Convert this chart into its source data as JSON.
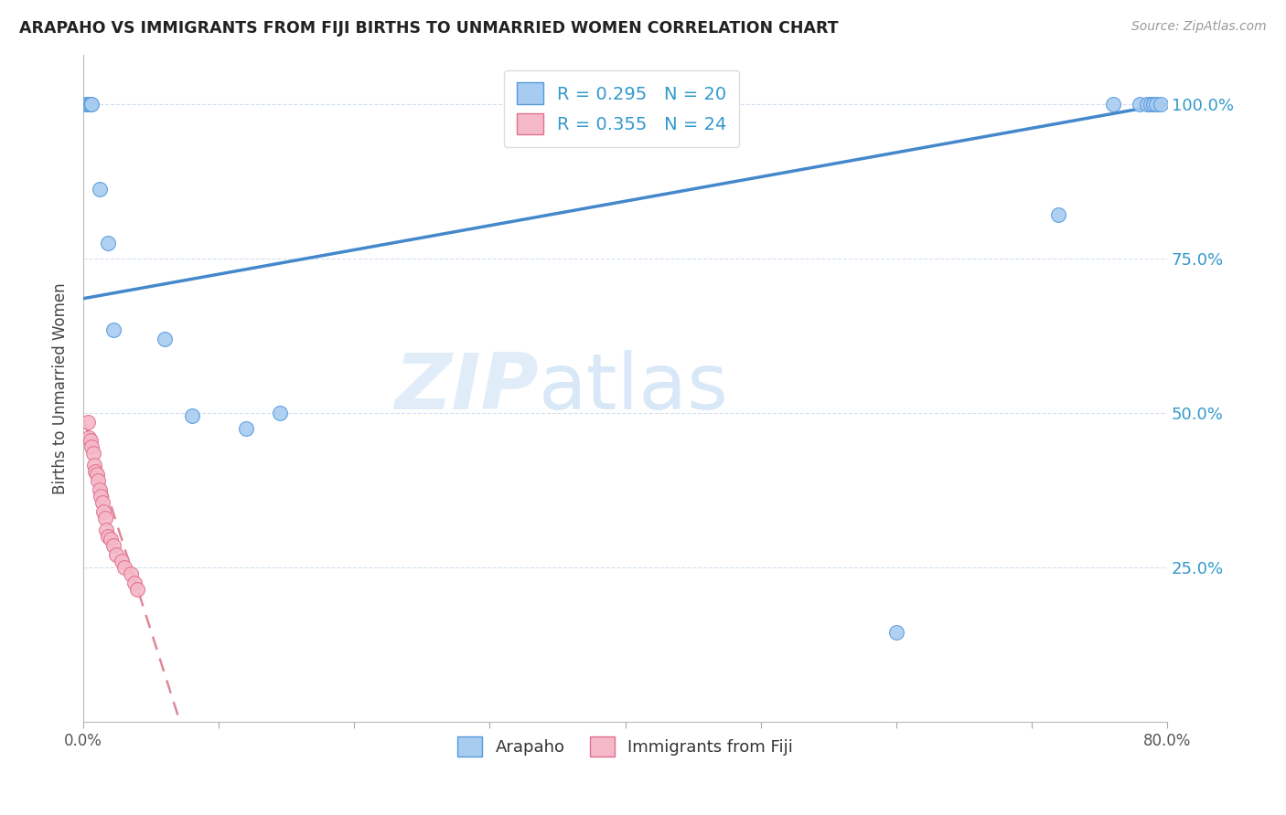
{
  "title": "ARAPAHO VS IMMIGRANTS FROM FIJI BIRTHS TO UNMARRIED WOMEN CORRELATION CHART",
  "source": "Source: ZipAtlas.com",
  "ylabel": "Births to Unmarried Women",
  "legend_label1": "Arapaho",
  "legend_label2": "Immigrants from Fiji",
  "R1": 0.295,
  "N1": 20,
  "R2": 0.355,
  "N2": 24,
  "xlim": [
    0.0,
    0.8
  ],
  "ylim": [
    0.0,
    1.08
  ],
  "yticks": [
    0.0,
    0.25,
    0.5,
    0.75,
    1.0
  ],
  "ytick_labels_right": [
    "",
    "25.0%",
    "50.0%",
    "75.0%",
    "100.0%"
  ],
  "xticks": [
    0.0,
    0.1,
    0.2,
    0.3,
    0.4,
    0.5,
    0.6,
    0.7,
    0.8
  ],
  "xtick_labels": [
    "0.0%",
    "",
    "",
    "",
    "",
    "",
    "",
    "",
    "80.0%"
  ],
  "color_arapaho": "#a8ccf0",
  "color_fiji": "#f5b8c8",
  "color_edge_arapaho": "#5599dd",
  "color_edge_fiji": "#e07090",
  "color_line_arapaho": "#4488cc",
  "color_line_fiji": "#dd8899",
  "background": "#ffffff",
  "arapaho_x": [
    0.002,
    0.004,
    0.005,
    0.006,
    0.012,
    0.018,
    0.022,
    0.06,
    0.08,
    0.12,
    0.145,
    0.6,
    0.72,
    0.76,
    0.78,
    0.785,
    0.788,
    0.79,
    0.792,
    0.795
  ],
  "arapaho_y": [
    1.0,
    1.0,
    1.0,
    1.0,
    0.862,
    0.775,
    0.635,
    0.62,
    0.495,
    0.475,
    0.5,
    0.145,
    0.82,
    1.0,
    1.0,
    1.0,
    1.0,
    1.0,
    1.0,
    1.0
  ],
  "fiji_x": [
    0.003,
    0.004,
    0.005,
    0.006,
    0.007,
    0.008,
    0.009,
    0.01,
    0.011,
    0.012,
    0.013,
    0.014,
    0.015,
    0.016,
    0.017,
    0.018,
    0.02,
    0.022,
    0.024,
    0.028,
    0.03,
    0.035,
    0.038,
    0.04
  ],
  "fiji_y": [
    0.485,
    0.46,
    0.455,
    0.445,
    0.435,
    0.415,
    0.405,
    0.4,
    0.39,
    0.375,
    0.365,
    0.355,
    0.34,
    0.33,
    0.31,
    0.3,
    0.295,
    0.285,
    0.27,
    0.26,
    0.25,
    0.24,
    0.225,
    0.215
  ],
  "arapaho_trend_x0": 0.0,
  "arapaho_trend_y0": 0.685,
  "arapaho_trend_x1": 0.8,
  "arapaho_trend_y1": 1.0,
  "fiji_trend_x0": 0.0,
  "fiji_trend_y0": 0.49,
  "fiji_trend_x1": 0.04,
  "fiji_trend_y1": 0.215
}
